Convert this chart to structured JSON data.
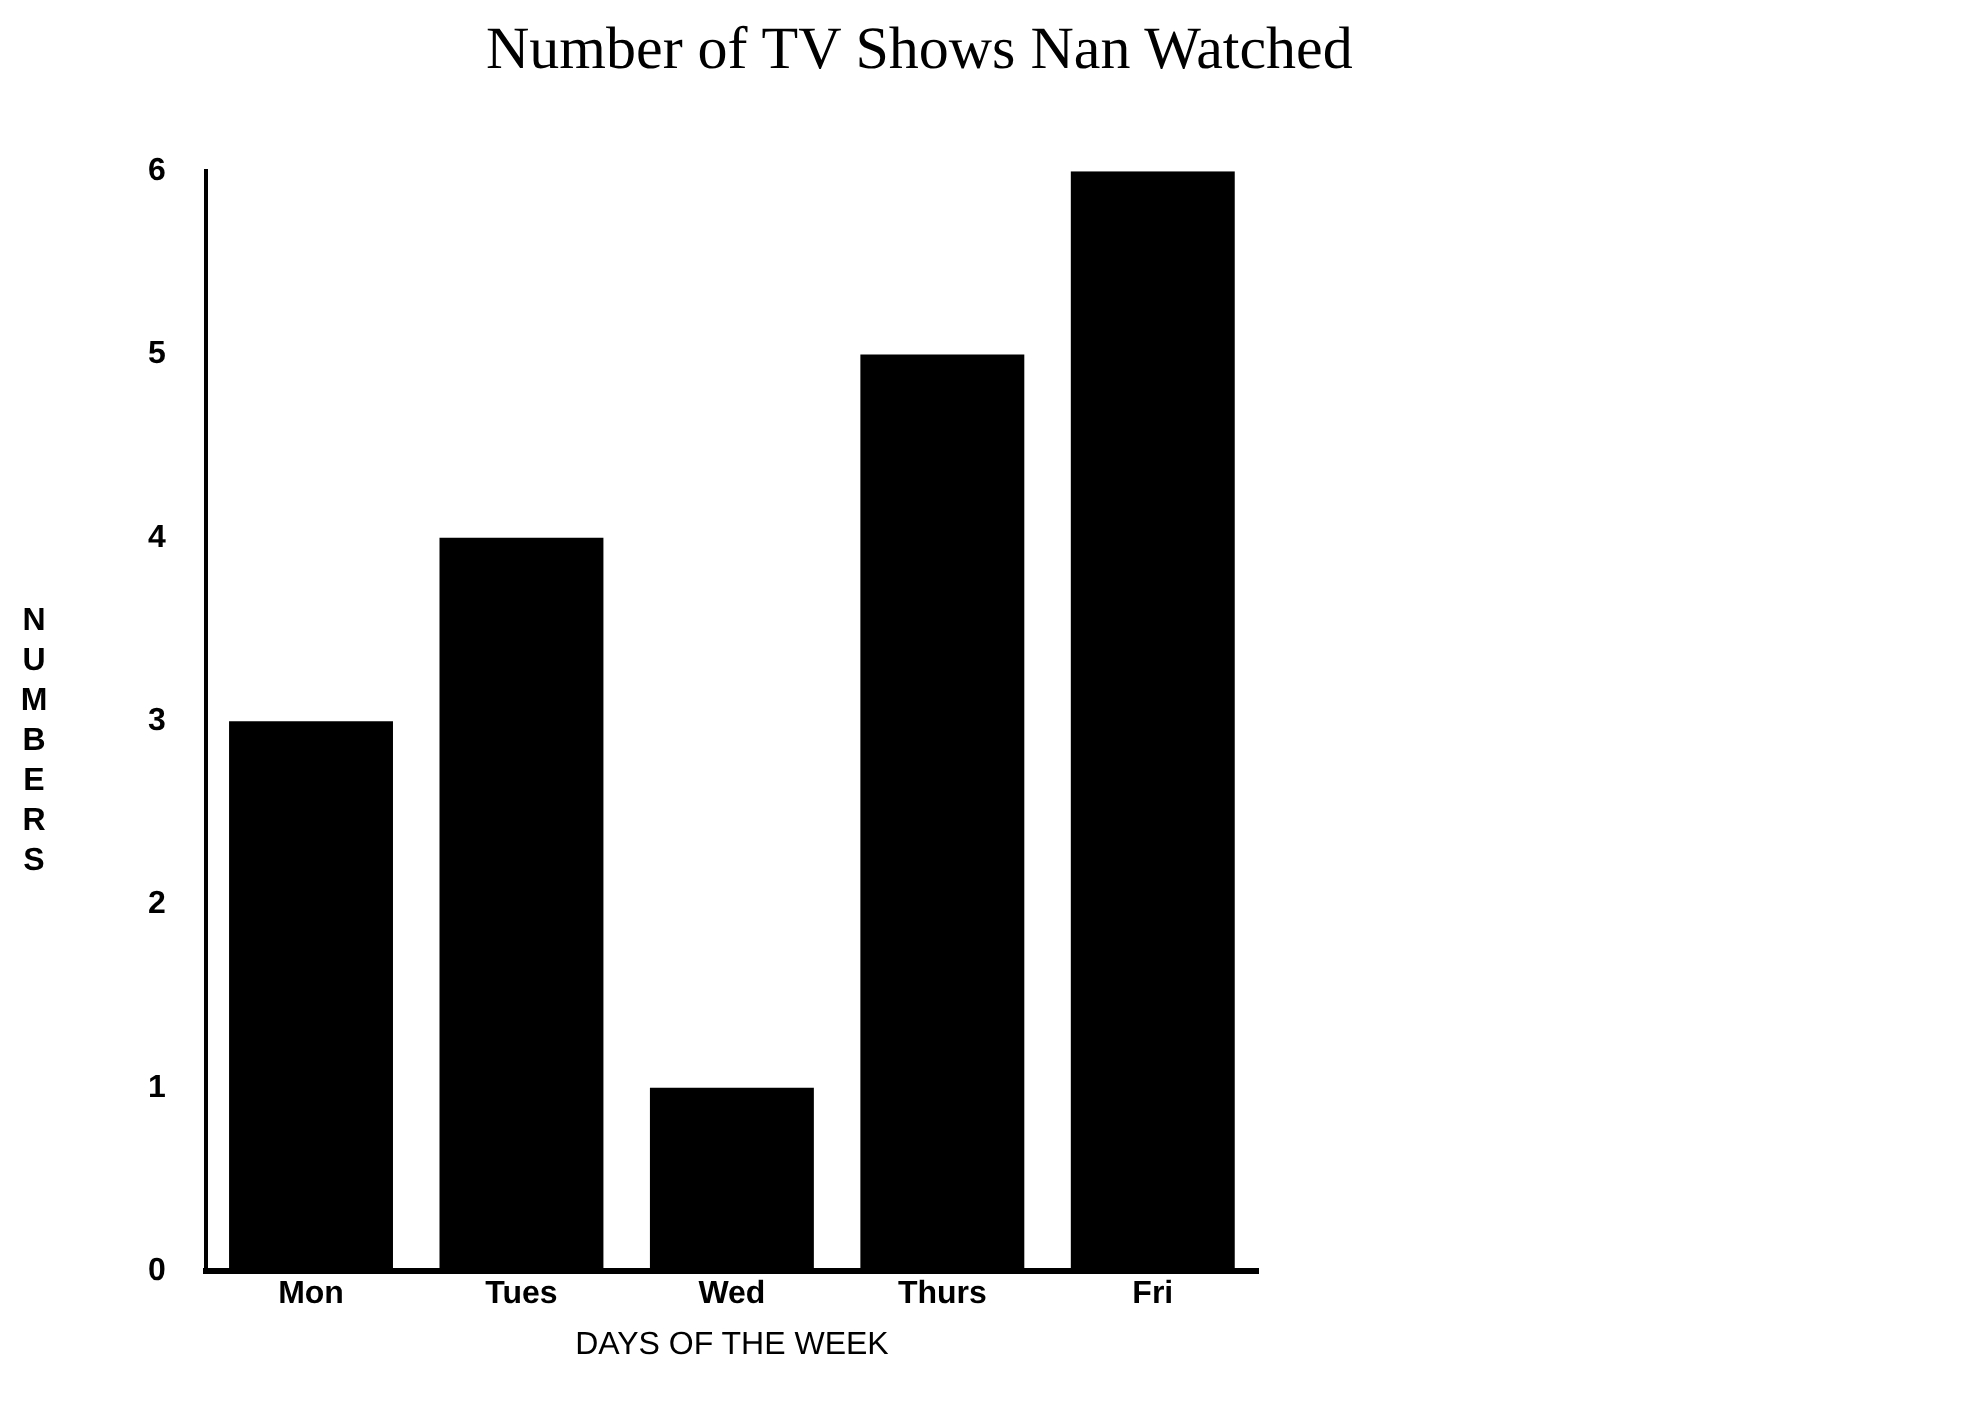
{
  "chart_data": {
    "type": "bar",
    "title": "Number of TV Shows Nan Watched",
    "xlabel": "DAYS OF THE WEEK",
    "ylabel": "NUMBERS",
    "categories": [
      "Mon",
      "Tues",
      "Wed",
      "Thurs",
      "Fri"
    ],
    "values": [
      3,
      4,
      1,
      5,
      6
    ],
    "color": "#000000",
    "ylim": [
      0,
      6
    ],
    "yticks": [
      0,
      1,
      2,
      3,
      4,
      5,
      6
    ],
    "grid": false,
    "legend": false
  }
}
